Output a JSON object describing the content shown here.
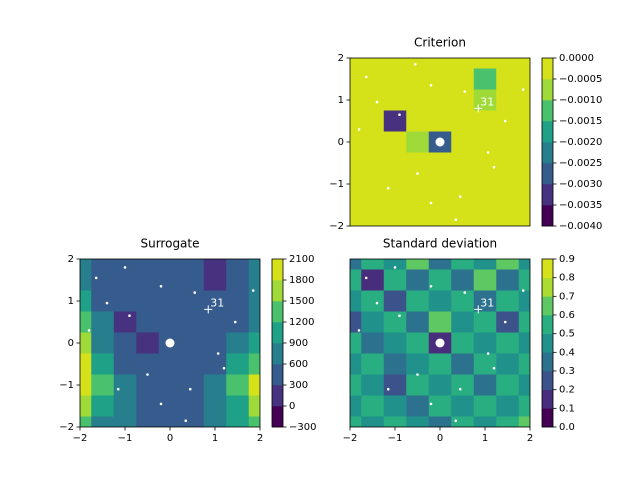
{
  "chart_data": [
    {
      "type": "contour",
      "title": "Criterion",
      "xlim": [
        -2,
        2
      ],
      "ylim": [
        -2,
        2
      ],
      "yticks": [
        {
          "value": -2,
          "label": "−2"
        },
        {
          "value": -1,
          "label": "−1"
        },
        0,
        1,
        2
      ],
      "colorbar_ticks": [
        {
          "value": -0.004,
          "label": "−0.0040"
        },
        {
          "value": -0.0035,
          "label": "−0.0035"
        },
        {
          "value": -0.003,
          "label": "−0.0030"
        },
        {
          "value": -0.0025,
          "label": "−0.0025"
        },
        {
          "value": -0.002,
          "label": "−0.0020"
        },
        {
          "value": -0.0015,
          "label": "−0.0015"
        },
        {
          "value": -0.001,
          "label": "−0.0010"
        },
        {
          "value": -0.0005,
          "label": "−0.0005"
        },
        {
          "value": 0,
          "label": "0.0000"
        }
      ],
      "colors": [
        "#440154",
        "#46327e",
        "#365c8d",
        "#277f8e",
        "#1fa187",
        "#4ac16d",
        "#a0da39",
        "#d5e21a"
      ],
      "grid_x": [
        -2,
        -1.5,
        -1,
        -0.5,
        0,
        0.5,
        1,
        1.5,
        2
      ],
      "grid_y": [
        2,
        1.5,
        1,
        0.5,
        0,
        -0.5,
        -1,
        -1.5,
        -2
      ],
      "z": [
        [
          -0.0002,
          -0.0002,
          -0.0002,
          -0.0002,
          -0.0002,
          -0.0002,
          -0.0004,
          -0.0002,
          -0.0002
        ],
        [
          -0.0002,
          -0.0002,
          -0.0002,
          -0.0002,
          -0.0002,
          -0.0002,
          -0.0012,
          -0.0002,
          -0.0002
        ],
        [
          -0.0002,
          -0.0002,
          -0.0002,
          -0.0002,
          -0.0002,
          -0.0002,
          -0.0006,
          -0.0002,
          -0.0002
        ],
        [
          -0.0002,
          -0.0002,
          -0.0032,
          -0.0002,
          -0.0002,
          -0.0002,
          -0.0002,
          -0.0002,
          -0.0002
        ],
        [
          -0.0002,
          -0.0002,
          -0.0002,
          -0.0008,
          -0.003,
          -0.0002,
          -0.0002,
          -0.0002,
          -0.0002
        ],
        [
          -0.0002,
          -0.0002,
          -0.0002,
          -0.0002,
          -0.0002,
          -0.0002,
          -0.0002,
          -0.0002,
          -0.0002
        ],
        [
          -0.0002,
          -0.0002,
          -0.0002,
          -0.0002,
          -0.0002,
          -0.0002,
          -0.0002,
          -0.0002,
          -0.0002
        ],
        [
          -0.0002,
          -0.0002,
          -0.0002,
          -0.0002,
          -0.0002,
          -0.0002,
          -0.0002,
          -0.0002,
          -0.0002
        ],
        [
          -0.0002,
          -0.0002,
          -0.0002,
          -0.0002,
          -0.0002,
          -0.0002,
          -0.0002,
          -0.0002,
          -0.0002
        ]
      ],
      "points_x": [
        -1.64,
        -0.55,
        -1.4,
        -0.2,
        -1.8,
        -0.9,
        0.55,
        1.45,
        1.07,
        -0.5,
        -1.15,
        0.45,
        -0.2,
        0.35,
        1.85,
        1.2
      ],
      "points_y": [
        1.55,
        1.85,
        0.95,
        1.35,
        0.3,
        0.65,
        1.2,
        0.5,
        -0.25,
        -0.75,
        -1.1,
        -1.3,
        -1.45,
        -1.85,
        1.25,
        -0.6
      ],
      "marker": {
        "x": 0.85,
        "y": 0.8,
        "label": "31"
      },
      "best": {
        "x": 0,
        "y": 0
      }
    },
    {
      "type": "contour",
      "title": "Surrogate",
      "xlim": [
        -2,
        2
      ],
      "ylim": [
        -2,
        2
      ],
      "xticks": [
        {
          "value": -2,
          "label": "−2"
        },
        {
          "value": -1,
          "label": "−1"
        },
        0,
        1,
        2
      ],
      "yticks": [
        {
          "value": -2,
          "label": "−2"
        },
        {
          "value": -1,
          "label": "−1"
        },
        0,
        1,
        2
      ],
      "colorbar_ticks": [
        {
          "value": -300,
          "label": "−300"
        },
        0,
        300,
        600,
        900,
        1200,
        1500,
        1800,
        2100
      ],
      "colors": [
        "#440154",
        "#46327e",
        "#365c8d",
        "#277f8e",
        "#1fa187",
        "#4ac16d",
        "#a0da39",
        "#d5e21a"
      ],
      "grid_x": [
        -2,
        -1.5,
        -1,
        -0.5,
        0,
        0.5,
        1,
        1.5,
        2
      ],
      "grid_y": [
        2,
        1.5,
        1,
        0.5,
        0,
        -0.5,
        -1,
        -1.5,
        -2
      ],
      "z": [
        [
          600,
          450,
          400,
          400,
          400,
          450,
          0,
          450,
          600
        ],
        [
          700,
          450,
          400,
          400,
          400,
          450,
          200,
          450,
          600
        ],
        [
          900,
          500,
          400,
          400,
          400,
          400,
          400,
          450,
          700
        ],
        [
          1200,
          600,
          200,
          400,
          400,
          400,
          400,
          500,
          800
        ],
        [
          1500,
          800,
          450,
          200,
          450,
          400,
          400,
          600,
          1000
        ],
        [
          1800,
          1100,
          500,
          400,
          400,
          400,
          500,
          900,
          1400
        ],
        [
          2000,
          1200,
          600,
          450,
          400,
          500,
          700,
          1200,
          1800
        ],
        [
          1700,
          1000,
          600,
          450,
          400,
          500,
          800,
          1100,
          1600
        ],
        [
          1200,
          800,
          600,
          500,
          450,
          500,
          700,
          900,
          1200
        ]
      ],
      "points_x": [
        -1.64,
        -1.0,
        -1.4,
        -0.2,
        -1.8,
        -0.9,
        0.55,
        1.45,
        1.07,
        -0.5,
        -1.15,
        0.45,
        -0.2,
        0.35,
        1.85,
        1.2
      ],
      "points_y": [
        1.55,
        1.8,
        0.95,
        1.35,
        0.3,
        0.65,
        1.2,
        0.5,
        -0.25,
        -0.75,
        -1.1,
        -1.1,
        -1.45,
        -1.85,
        1.25,
        -0.6
      ],
      "marker": {
        "x": 0.85,
        "y": 0.8,
        "label": "31"
      },
      "best": {
        "x": 0,
        "y": 0
      }
    },
    {
      "type": "contour",
      "title": "Standard deviation",
      "xlim": [
        -2,
        2
      ],
      "ylim": [
        -2,
        2
      ],
      "xticks": [
        {
          "value": -2,
          "label": "−2"
        },
        {
          "value": -1,
          "label": "−1"
        },
        0,
        1,
        2
      ],
      "colorbar_ticks": [
        {
          "value": 0,
          "label": "0.0"
        },
        0.1,
        0.2,
        0.3,
        0.4,
        0.5,
        0.6,
        0.7,
        0.8,
        0.9
      ],
      "colors": [
        "#440154",
        "#472d7b",
        "#3b528b",
        "#2c728e",
        "#21918c",
        "#28ae80",
        "#5ec962",
        "#addc30",
        "#d5e21a"
      ],
      "grid_x": [
        -2,
        -1.5,
        -1,
        -0.5,
        0,
        0.5,
        1,
        1.5,
        2
      ],
      "grid_y": [
        2,
        1.5,
        1,
        0.5,
        0,
        -0.5,
        -1,
        -1.5,
        -2
      ],
      "z": [
        [
          0.35,
          0.55,
          0.45,
          0.65,
          0.35,
          0.55,
          0.45,
          0.65,
          0.45
        ],
        [
          0.55,
          0.15,
          0.55,
          0.35,
          0.55,
          0.35,
          0.65,
          0.35,
          0.55
        ],
        [
          0.45,
          0.55,
          0.25,
          0.55,
          0.45,
          0.55,
          0.35,
          0.55,
          0.45
        ],
        [
          0.25,
          0.45,
          0.55,
          0.35,
          0.65,
          0.45,
          0.55,
          0.25,
          0.55
        ],
        [
          0.55,
          0.35,
          0.45,
          0.55,
          0.15,
          0.55,
          0.45,
          0.55,
          0.45
        ],
        [
          0.45,
          0.55,
          0.35,
          0.45,
          0.55,
          0.35,
          0.55,
          0.45,
          0.55
        ],
        [
          0.55,
          0.45,
          0.25,
          0.55,
          0.45,
          0.55,
          0.35,
          0.55,
          0.45
        ],
        [
          0.45,
          0.55,
          0.45,
          0.35,
          0.55,
          0.45,
          0.55,
          0.45,
          0.55
        ],
        [
          0.55,
          0.45,
          0.55,
          0.45,
          0.35,
          0.55,
          0.45,
          0.55,
          0.65
        ]
      ],
      "points_x": [
        -1.64,
        -1.0,
        -1.4,
        -0.2,
        -1.8,
        -0.9,
        0.55,
        1.45,
        1.07,
        -0.5,
        -1.15,
        0.45,
        -0.2,
        0.35,
        1.85,
        1.2
      ],
      "points_y": [
        1.55,
        1.8,
        0.95,
        1.35,
        0.3,
        0.65,
        1.2,
        0.5,
        -0.25,
        -0.75,
        -1.1,
        -1.1,
        -1.45,
        -1.85,
        1.25,
        -0.6
      ],
      "marker": {
        "x": 0.85,
        "y": 0.8,
        "label": "31"
      },
      "best": {
        "x": 0,
        "y": 0
      }
    }
  ]
}
